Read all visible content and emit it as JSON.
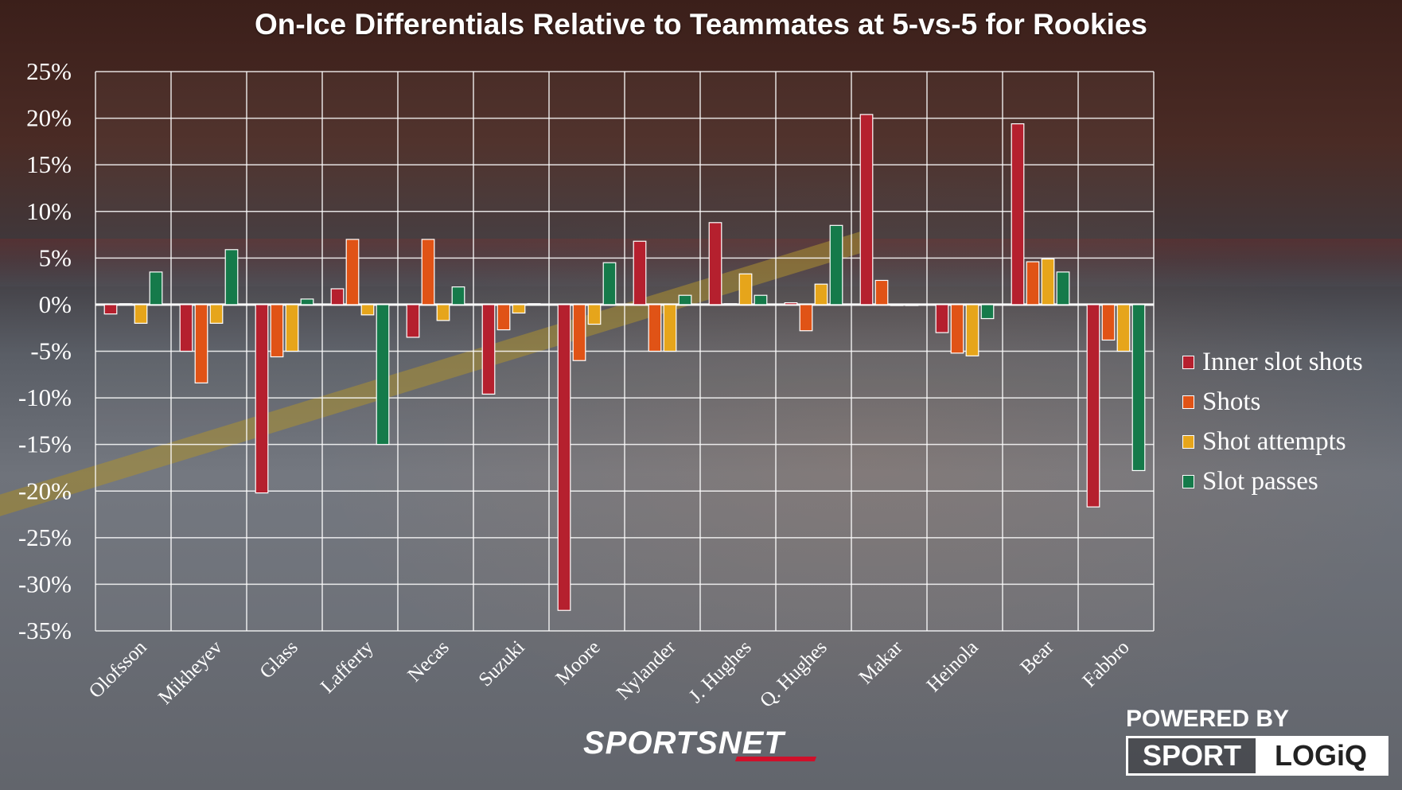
{
  "title": "On-Ice Differentials Relative to Teammates at 5-vs-5 for Rookies",
  "chart_data": {
    "type": "bar",
    "title": "On-Ice Differentials Relative to Teammates at 5-vs-5 for Rookies",
    "categories": [
      "Olofsson",
      "Mikheyev",
      "Glass",
      "Lafferty",
      "Necas",
      "Suzuki",
      "Moore",
      "Nylander",
      "J. Hughes",
      "Q. Hughes",
      "Makar",
      "Heinola",
      "Bear",
      "Fabbro"
    ],
    "series": [
      {
        "name": "Inner slot shots",
        "color": "#b5202e",
        "values": [
          -1,
          -5,
          -20.2,
          1.7,
          -3.5,
          -9.6,
          -32.8,
          6.8,
          8.8,
          0.2,
          20.4,
          -3,
          19.4,
          -21.7
        ]
      },
      {
        "name": "Shots",
        "color": "#e05316",
        "values": [
          0.1,
          -8.4,
          -5.6,
          7,
          7,
          -2.7,
          -6,
          -5,
          0.1,
          -2.8,
          2.6,
          -5.2,
          4.6,
          -3.8
        ]
      },
      {
        "name": "Shot attempts",
        "color": "#e6a51b",
        "values": [
          -2,
          -2,
          -5,
          -1.1,
          -1.7,
          -0.9,
          -2.1,
          -5,
          3.3,
          2.2,
          -0.1,
          -5.5,
          4.9,
          -5
        ]
      },
      {
        "name": "Slot passes",
        "color": "#157a4a",
        "values": [
          3.5,
          5.9,
          0.6,
          -15,
          1.9,
          0.1,
          4.5,
          1,
          1,
          8.5,
          -0.1,
          -1.5,
          3.5,
          -17.8
        ]
      }
    ],
    "ylim": [
      -35,
      25
    ],
    "ytick_step": 5,
    "ytick_suffix": "%",
    "grid": true,
    "legend_position": "right"
  },
  "branding": {
    "sportsnet": "SPORTSNET",
    "powered_by": "POWERED BY",
    "sport": "SPORT",
    "logiq": "LOGiQ"
  }
}
